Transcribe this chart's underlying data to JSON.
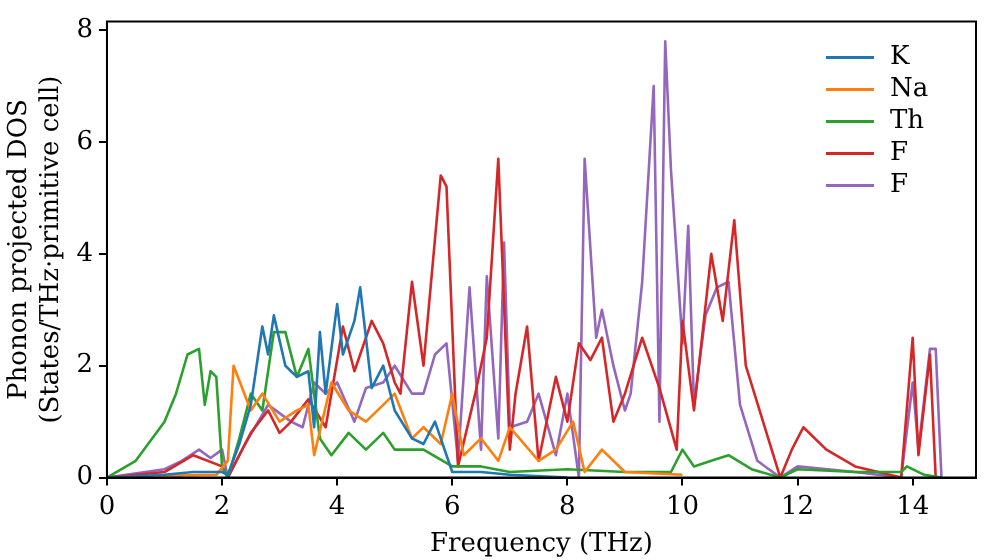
{
  "chart_data": {
    "type": "line",
    "xlabel": "Frequency (THz)",
    "ylabel": "Phonon projected DOS\n(States/THz·primitive cell)",
    "xlim": [
      0,
      15.1
    ],
    "ylim": [
      0,
      8.15
    ],
    "xticks": [
      0,
      2,
      4,
      6,
      8,
      10,
      12,
      14
    ],
    "yticks": [
      0,
      2,
      4,
      6,
      8
    ],
    "grid": false,
    "legend": "top right",
    "marker": "none",
    "line_style": "solid",
    "series": [
      {
        "name": "K",
        "color": "#1f77b4",
        "x": [
          0,
          1,
          1.5,
          2,
          2.1,
          2.3,
          2.5,
          2.7,
          2.8,
          2.9,
          3.1,
          3.3,
          3.5,
          3.6,
          3.7,
          3.8,
          4,
          4.1,
          4.3,
          4.4,
          4.6,
          4.8,
          5,
          5.3,
          5.5,
          5.7,
          5.9,
          6,
          6.5,
          7,
          8
        ],
        "values": [
          0,
          0.05,
          0.1,
          0.1,
          0.05,
          0.6,
          1.3,
          2.7,
          2.2,
          2.9,
          2,
          1.8,
          1.9,
          0.9,
          2.6,
          1.5,
          3.1,
          2.2,
          2.8,
          3.4,
          1.6,
          2,
          1.2,
          0.7,
          0.6,
          1,
          0.4,
          0.1,
          0.1,
          0.05,
          0
        ]
      },
      {
        "name": "Na",
        "color": "#ff7f0e",
        "x": [
          0,
          1,
          1.9,
          2.1,
          2.2,
          2.5,
          2.7,
          3,
          3.3,
          3.5,
          3.6,
          3.9,
          4.2,
          4.5,
          4.8,
          5,
          5.3,
          5.5,
          5.8,
          6,
          6.2,
          6.5,
          6.8,
          7,
          7.5,
          7.8,
          8.1,
          8.3,
          8.6,
          9,
          10
        ],
        "values": [
          0,
          0.03,
          0.05,
          0.3,
          2,
          1.2,
          1.5,
          1,
          1.2,
          1.3,
          0.4,
          1.7,
          1.2,
          1,
          1.3,
          1.5,
          0.7,
          0.9,
          0.6,
          1.5,
          0.4,
          0.7,
          0.3,
          0.9,
          0.3,
          0.5,
          1,
          0.1,
          0.5,
          0.1,
          0.05
        ]
      },
      {
        "name": "Th",
        "color": "#2ca02c",
        "x": [
          0,
          0.5,
          1,
          1.2,
          1.4,
          1.6,
          1.7,
          1.8,
          1.9,
          2,
          2.1,
          2.3,
          2.5,
          2.7,
          2.9,
          3.1,
          3.3,
          3.5,
          3.7,
          3.9,
          4.2,
          4.5,
          4.8,
          5,
          5.5,
          6,
          6.5,
          7,
          8,
          9,
          9.8,
          10,
          10.2,
          10.5,
          10.8,
          11.2,
          11.7,
          12,
          13,
          13.8,
          13.9,
          14.2,
          14.5
        ],
        "values": [
          0,
          0.3,
          1,
          1.5,
          2.2,
          2.3,
          1.3,
          1.9,
          1.8,
          0.2,
          0,
          0.7,
          1.5,
          1.2,
          2.6,
          2.6,
          1.8,
          2.3,
          0.7,
          0.4,
          0.8,
          0.5,
          0.8,
          0.5,
          0.5,
          0.2,
          0.2,
          0.1,
          0.15,
          0.1,
          0.1,
          0.5,
          0.2,
          0.3,
          0.4,
          0.15,
          0,
          0.15,
          0.1,
          0.1,
          0.2,
          0.05,
          0
        ]
      },
      {
        "name": "F",
        "color": "#d62728",
        "x": [
          0,
          1,
          1.5,
          2,
          2.1,
          2.5,
          2.8,
          3,
          3.2,
          3.5,
          3.8,
          4.1,
          4.3,
          4.4,
          4.6,
          4.8,
          5,
          5.1,
          5.3,
          5.5,
          5.8,
          5.9,
          6.1,
          6.4,
          6.6,
          6.8,
          7,
          7.1,
          7.3,
          7.5,
          7.8,
          8,
          8.2,
          8.4,
          8.6,
          8.8,
          9,
          9.3,
          9.6,
          9.9,
          10,
          10.2,
          10.5,
          10.7,
          10.9,
          11.1,
          11.4,
          11.7,
          11.9,
          12.1,
          12.5,
          13,
          13.8,
          14,
          14.1,
          14.3,
          14.4,
          14.5
        ],
        "values": [
          0,
          0.1,
          0.4,
          0.2,
          0,
          0.8,
          1.2,
          0.8,
          1.0,
          1.4,
          0.9,
          2.7,
          1.9,
          2.2,
          2.8,
          2.4,
          1.7,
          1.5,
          3.5,
          2.0,
          5.4,
          5.2,
          0.2,
          1.5,
          2.5,
          5.7,
          0.5,
          1.5,
          2.7,
          0.3,
          1.8,
          1.0,
          2.4,
          2.1,
          2.5,
          1.0,
          1.5,
          2.5,
          1.6,
          0.5,
          2.8,
          1.2,
          4.0,
          2.8,
          4.6,
          2.0,
          1.0,
          0,
          0.5,
          0.9,
          0.5,
          0.2,
          0,
          2.5,
          0.4,
          2.2,
          0,
          0
        ]
      },
      {
        "name": "F",
        "color": "#9467bd",
        "x": [
          0,
          1,
          1.3,
          1.6,
          1.8,
          2,
          2.1,
          2.4,
          2.8,
          3.2,
          3.4,
          3.6,
          3.8,
          4,
          4.3,
          4.5,
          4.8,
          5,
          5.3,
          5.5,
          5.7,
          5.9,
          6.1,
          6.3,
          6.5,
          6.6,
          6.8,
          6.9,
          7,
          7.3,
          7.5,
          7.8,
          8,
          8.2,
          8.3,
          8.5,
          8.6,
          8.8,
          9,
          9.1,
          9.3,
          9.5,
          9.6,
          9.7,
          9.8,
          10,
          10.1,
          10.2,
          10.4,
          10.6,
          10.8,
          11,
          11.3,
          11.7,
          12,
          13,
          13.8,
          14,
          14.1,
          14.3,
          14.4,
          14.5
        ],
        "values": [
          0,
          0.15,
          0.3,
          0.5,
          0.35,
          0.5,
          0,
          0.6,
          1.3,
          1.0,
          0.9,
          1.7,
          1.5,
          1.7,
          1.0,
          1.6,
          1.7,
          2.0,
          1.5,
          1.5,
          2.2,
          2.4,
          0.3,
          3.4,
          0.5,
          3.6,
          0.7,
          4.2,
          0.9,
          1.0,
          1.5,
          0.4,
          1.5,
          0,
          5.7,
          2.5,
          3.0,
          2.0,
          1.2,
          1.5,
          3.5,
          7.0,
          1.0,
          7.8,
          5.5,
          2.4,
          4.5,
          1.3,
          2.9,
          3.4,
          3.5,
          1.3,
          0.3,
          0,
          0.2,
          0.1,
          0,
          1.7,
          0.5,
          2.3,
          2.3,
          0
        ]
      }
    ]
  }
}
